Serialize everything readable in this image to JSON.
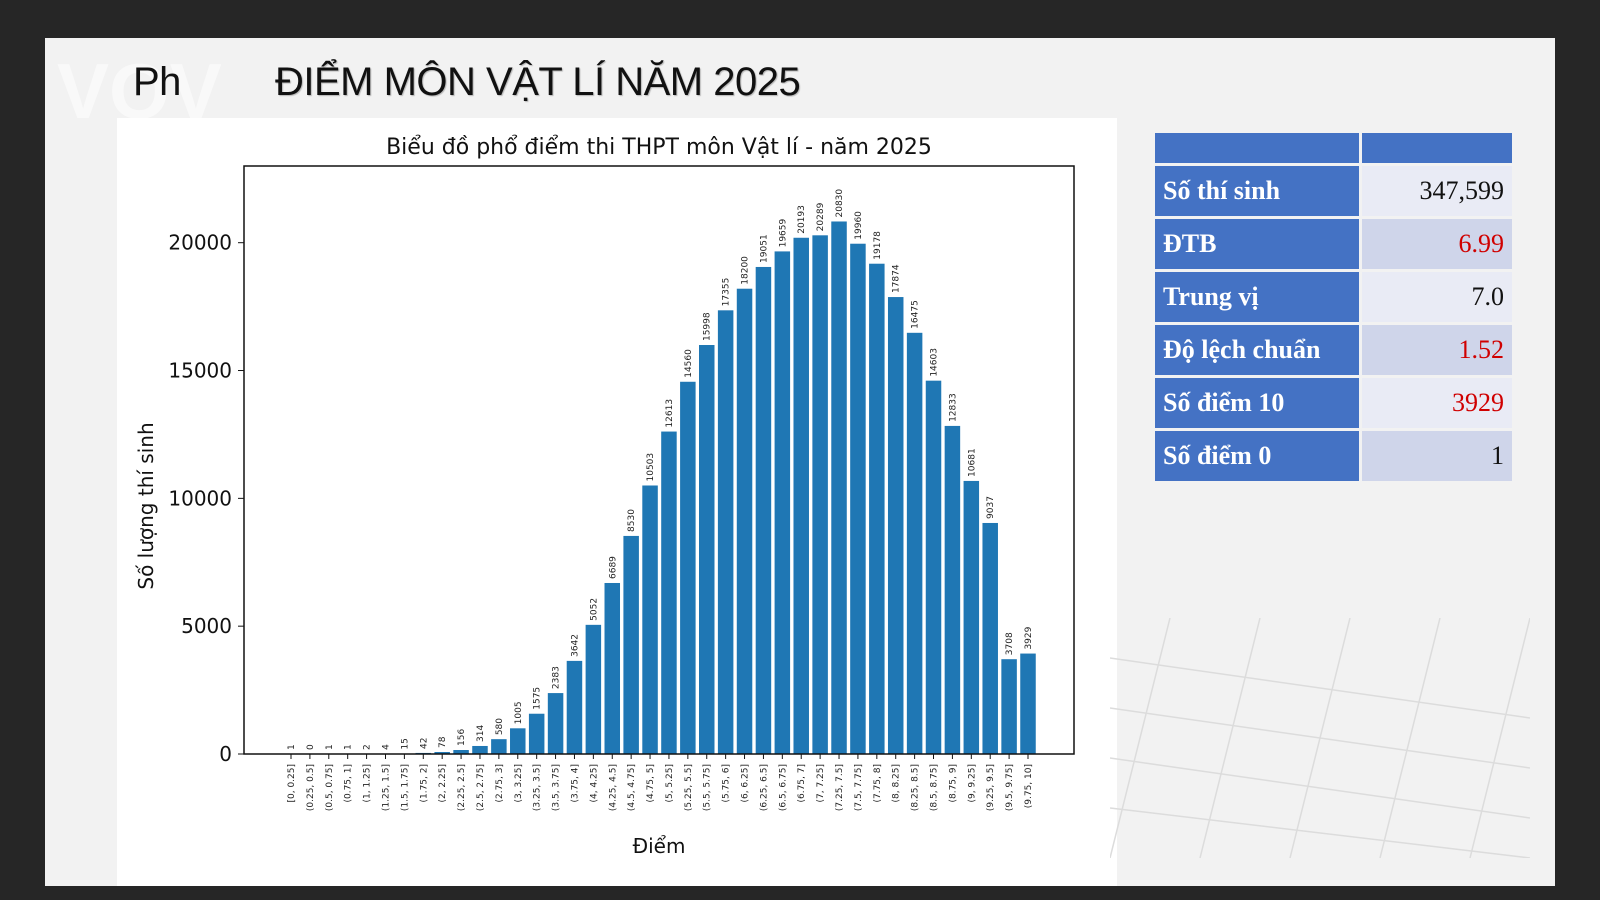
{
  "slide": {
    "title": "ĐIỂM MÔN VẬT LÍ NĂM 2025",
    "title_prefix": "Ph",
    "logo_text": "VOV"
  },
  "colors": {
    "bar": "#1f77b4",
    "table_header": "#4472c4",
    "highlight": "#d00000",
    "background": "#262626"
  },
  "stats": {
    "rows": [
      {
        "label": "Số thí sinh",
        "value": "347,599",
        "highlight": false
      },
      {
        "label": "ĐTB",
        "value": "6.99",
        "highlight": true
      },
      {
        "label": "Trung vị",
        "value": "7.0",
        "highlight": false
      },
      {
        "label": "Độ lệch chuẩn",
        "value": "1.52",
        "highlight": true
      },
      {
        "label": "Số điểm 10",
        "value": "3929",
        "highlight": true
      },
      {
        "label": "Số điểm 0",
        "value": "1",
        "highlight": false
      }
    ]
  },
  "chart_data": {
    "type": "bar",
    "title": "Biểu đồ phổ điểm thi THPT môn Vật lí - năm 2025",
    "xlabel": "Điểm",
    "ylabel": "Số lượng thí sinh",
    "ylim": [
      0,
      23000
    ],
    "yticks": [
      0,
      5000,
      10000,
      15000,
      20000
    ],
    "grid": false,
    "categories": [
      "[0, 0.25]",
      "(0.25, 0.5]",
      "(0.5, 0.75]",
      "(0.75, 1]",
      "(1, 1.25]",
      "(1.25, 1.5]",
      "(1.5, 1.75]",
      "(1.75, 2]",
      "(2, 2.25]",
      "(2.25, 2.5]",
      "(2.5, 2.75]",
      "(2.75, 3]",
      "(3, 3.25]",
      "(3.25, 3.5]",
      "(3.5, 3.75]",
      "(3.75, 4]",
      "(4, 4.25]",
      "(4.25, 4.5]",
      "(4.5, 4.75]",
      "(4.75, 5]",
      "(5, 5.25]",
      "(5.25, 5.5]",
      "(5.5, 5.75]",
      "(5.75, 6]",
      "(6, 6.25]",
      "(6.25, 6.5]",
      "(6.5, 6.75]",
      "(6.75, 7]",
      "(7, 7.25]",
      "(7.25, 7.5]",
      "(7.5, 7.75]",
      "(7.75, 8]",
      "(8, 8.25]",
      "(8.25, 8.5]",
      "(8.5, 8.75]",
      "(8.75, 9]",
      "(9, 9.25]",
      "(9.25, 9.5]",
      "(9.5, 9.75]",
      "(9.75, 10]"
    ],
    "values": [
      1,
      0,
      1,
      1,
      2,
      4,
      15,
      42,
      78,
      156,
      314,
      580,
      1005,
      1575,
      2383,
      3642,
      5052,
      6689,
      8530,
      10503,
      12613,
      14560,
      15998,
      17355,
      18200,
      19051,
      19659,
      20193,
      20289,
      20830,
      19960,
      19178,
      17874,
      16475,
      14603,
      12833,
      10681,
      9037,
      3708,
      3929
    ]
  }
}
